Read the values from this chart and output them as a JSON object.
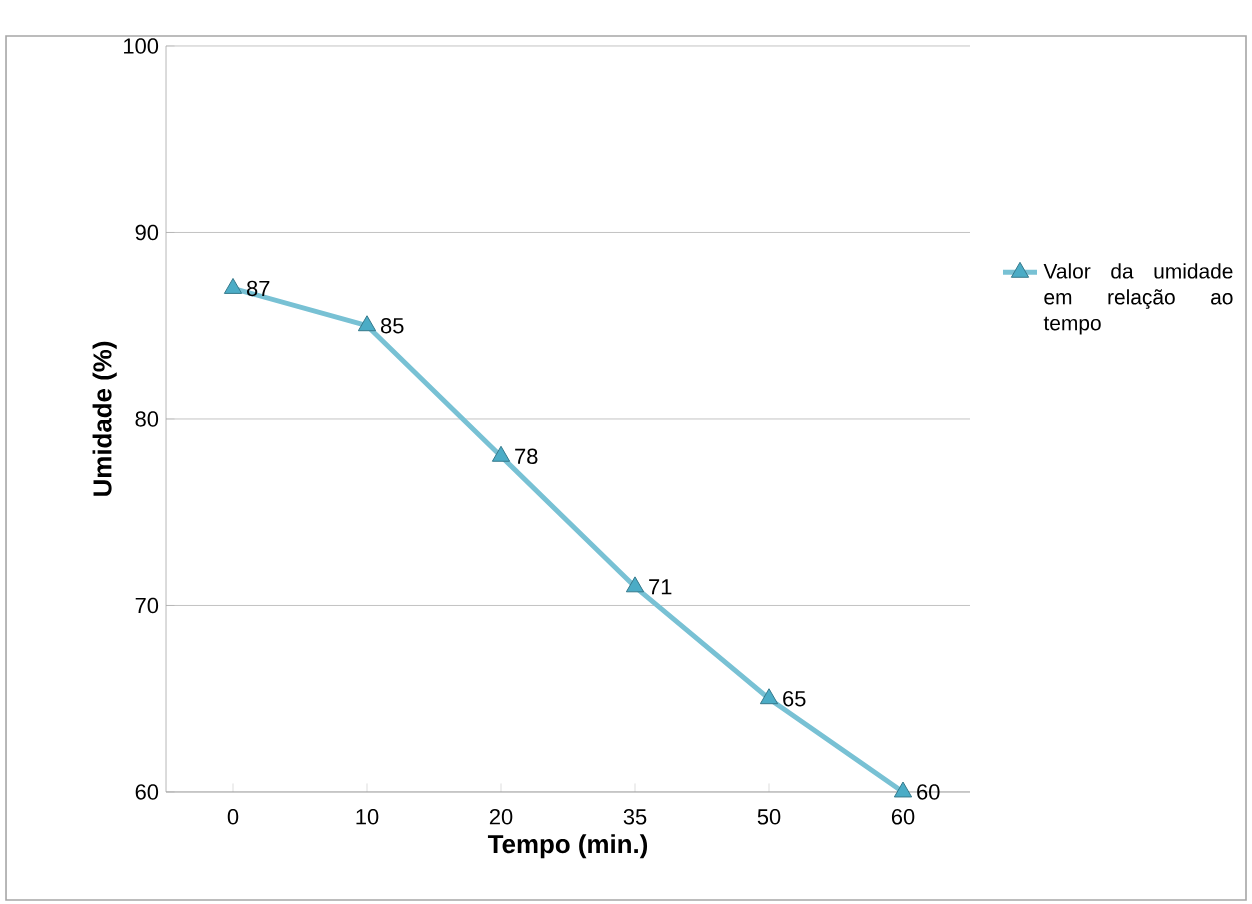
{
  "chart_data": {
    "type": "line",
    "xlabel": "Tempo (min.)",
    "ylabel": "Umidade (%)",
    "categories": [
      "0",
      "10",
      "20",
      "35",
      "50",
      "60"
    ],
    "series": [
      {
        "name": "Valor da umidade em relação ao tempo",
        "color": "#4bacc6",
        "values": [
          87,
          85,
          78,
          71,
          65,
          60
        ]
      }
    ],
    "ylim": [
      60,
      100
    ],
    "yticks": [
      60,
      70,
      80,
      90,
      100
    ],
    "grid": "y",
    "legend": "right",
    "marker": "triangle",
    "line_style": "solid",
    "data_labels": true
  }
}
